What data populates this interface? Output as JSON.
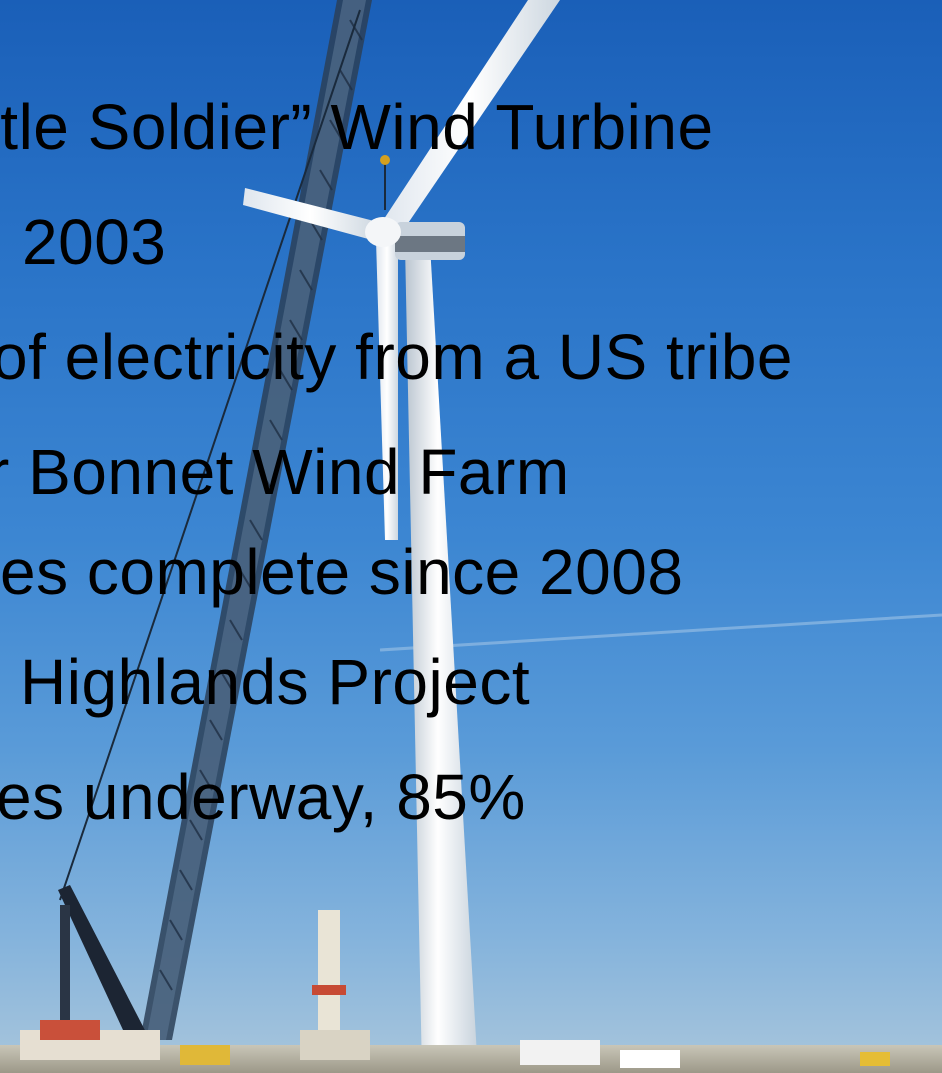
{
  "slide": {
    "lines": [
      "ttle Soldier” Wind Turbine",
      "2003",
      "of electricity from a US tribe",
      "r Bonnet Wind Farm",
      "es complete since 2008",
      "Highlands Project",
      "es underway, 85%"
    ]
  },
  "photo": {
    "subject": "wind-turbine-under-construction",
    "sky_color": "#2a74c8"
  }
}
